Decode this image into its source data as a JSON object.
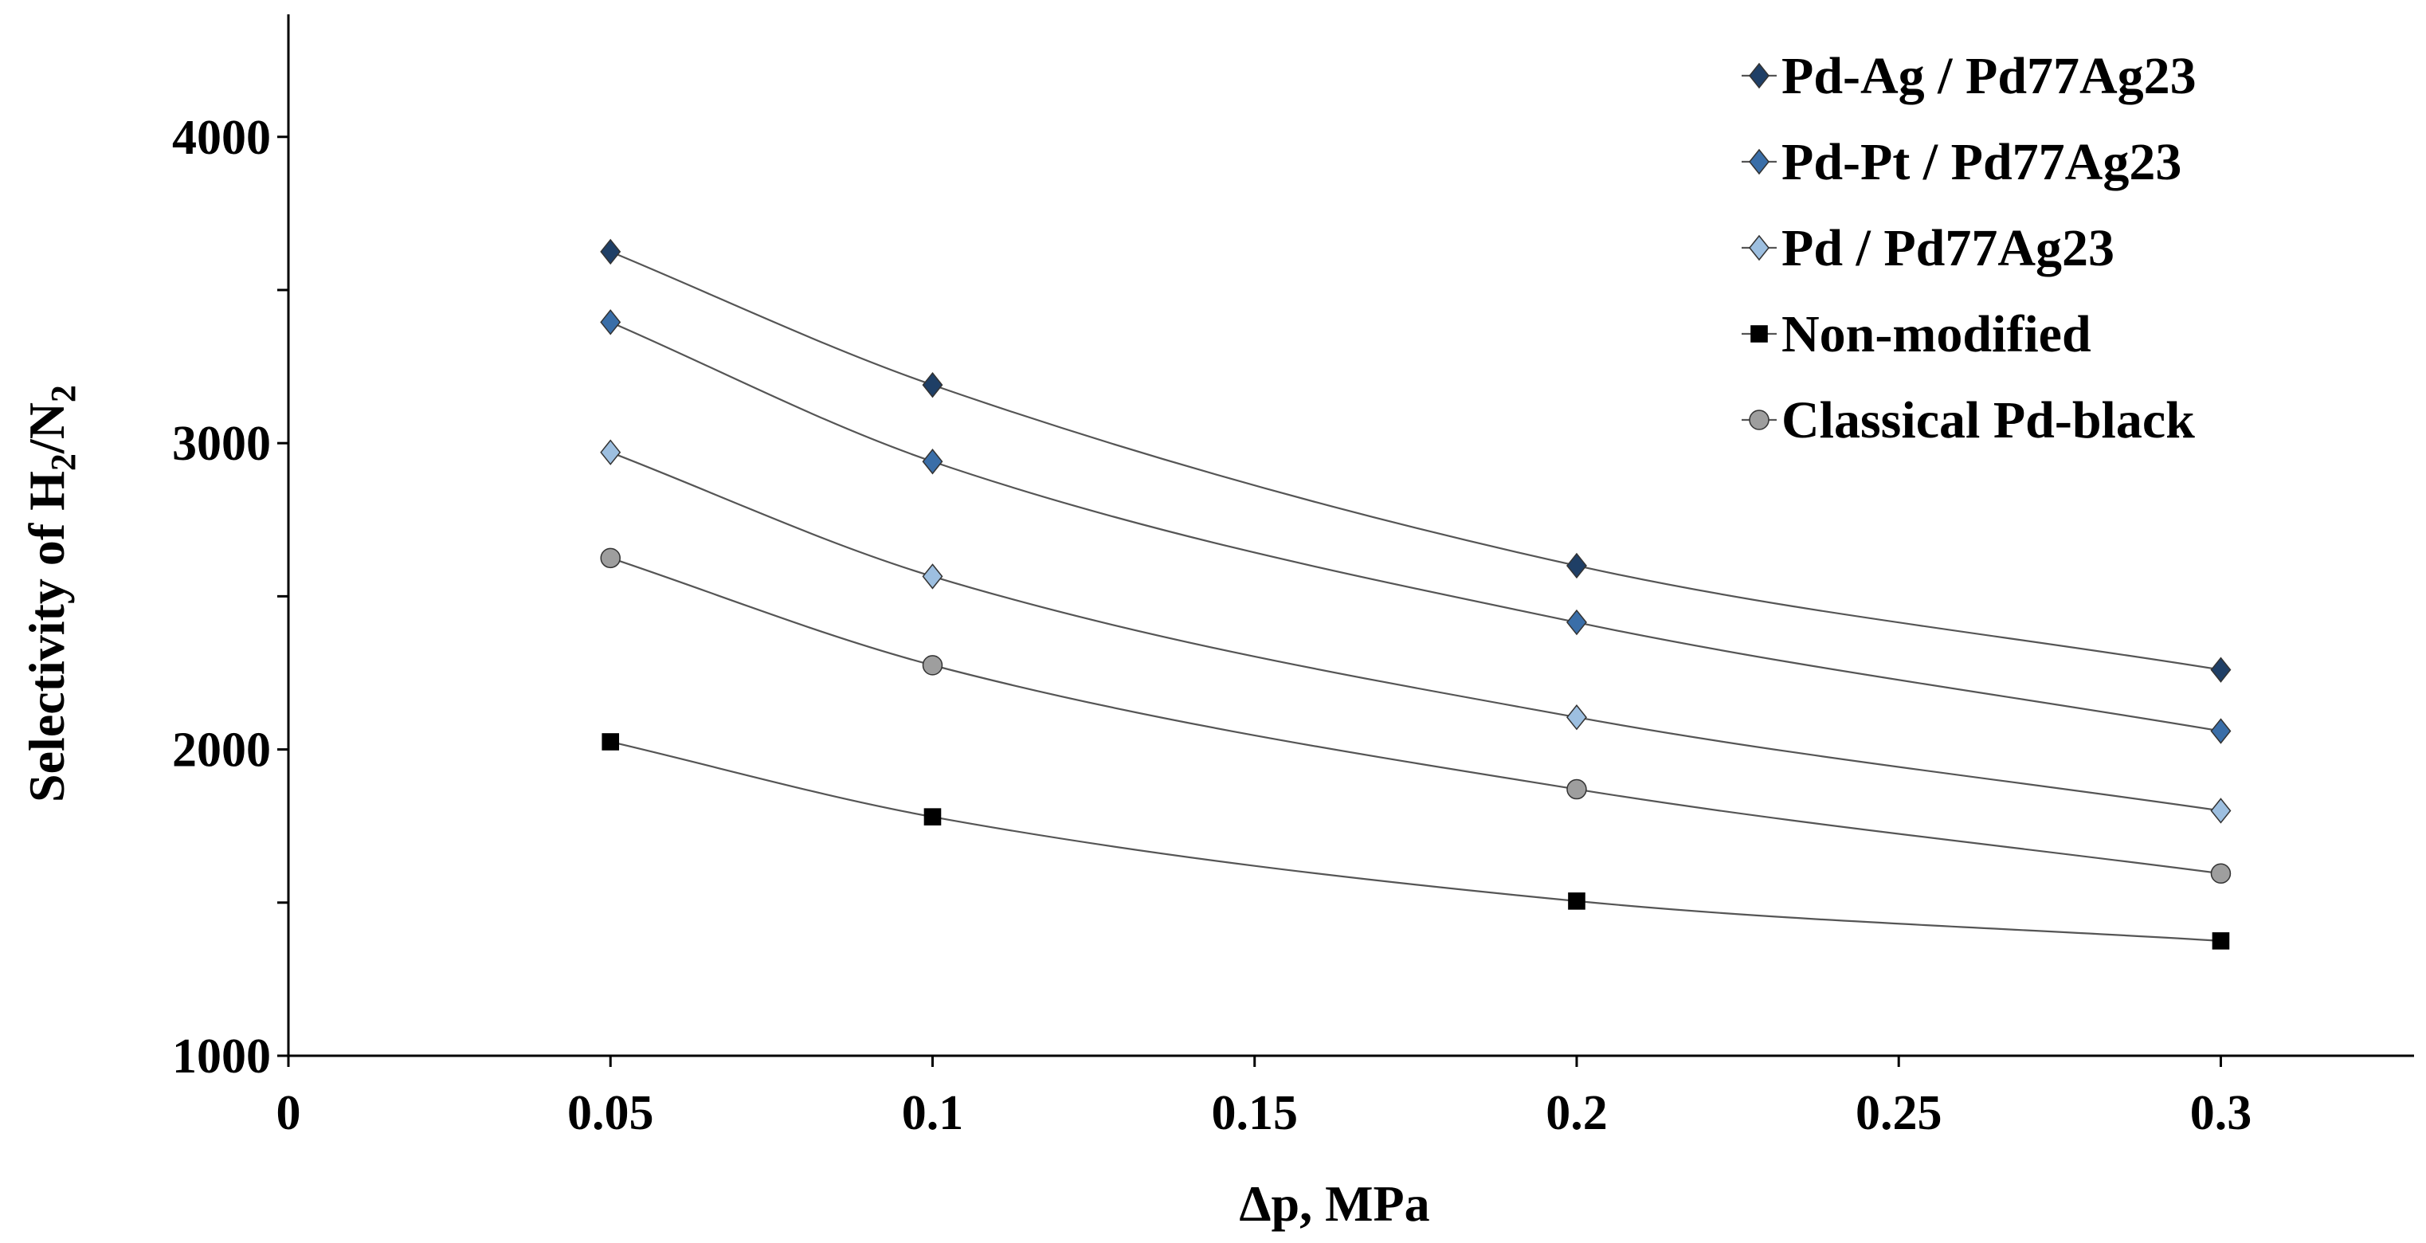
{
  "chart_data": {
    "type": "scatter",
    "title": "",
    "xlabel": "Δp, MPa",
    "ylabel": {
      "prefix": "Selectivity of  H",
      "sub1": "2",
      "mid": "/N",
      "sub2": "2"
    },
    "xlim": [
      0,
      0.33
    ],
    "ylim": [
      1000,
      4400
    ],
    "x_ticks": [
      0,
      0.05,
      0.1,
      0.15,
      0.2,
      0.25,
      0.3
    ],
    "x_tick_labels": [
      "0",
      "0.05",
      "0.1",
      "0.15",
      "0.2",
      "0.25",
      "0.3"
    ],
    "y_ticks": [
      1000,
      2000,
      3000,
      4000
    ],
    "y_tick_labels": [
      "1000",
      "2000",
      "3000",
      "4000"
    ],
    "y_minor_ticks": [
      1500,
      2500,
      3500
    ],
    "legend_position": "top-right",
    "x": [
      0.05,
      0.1,
      0.2,
      0.3
    ],
    "series": [
      {
        "name": "Pd-Ag / Pd77Ag23",
        "marker": "diamond",
        "color": "#1F3F66",
        "values": [
          3625,
          3190,
          2600,
          2260
        ]
      },
      {
        "name": "Pd-Pt / Pd77Ag23",
        "marker": "diamond",
        "color": "#3A6EA8",
        "values": [
          3395,
          2940,
          2415,
          2060
        ]
      },
      {
        "name": "Pd / Pd77Ag23",
        "marker": "diamond",
        "color": "#9DBFE0",
        "values": [
          2970,
          2565,
          2105,
          1800
        ]
      },
      {
        "name": "Non-modified",
        "marker": "square",
        "color": "#000000",
        "values": [
          2025,
          1780,
          1505,
          1375
        ]
      },
      {
        "name": "Classical Pd-black",
        "marker": "circle",
        "color": "#9E9E9E",
        "values": [
          2625,
          2275,
          1870,
          1595
        ]
      }
    ]
  }
}
